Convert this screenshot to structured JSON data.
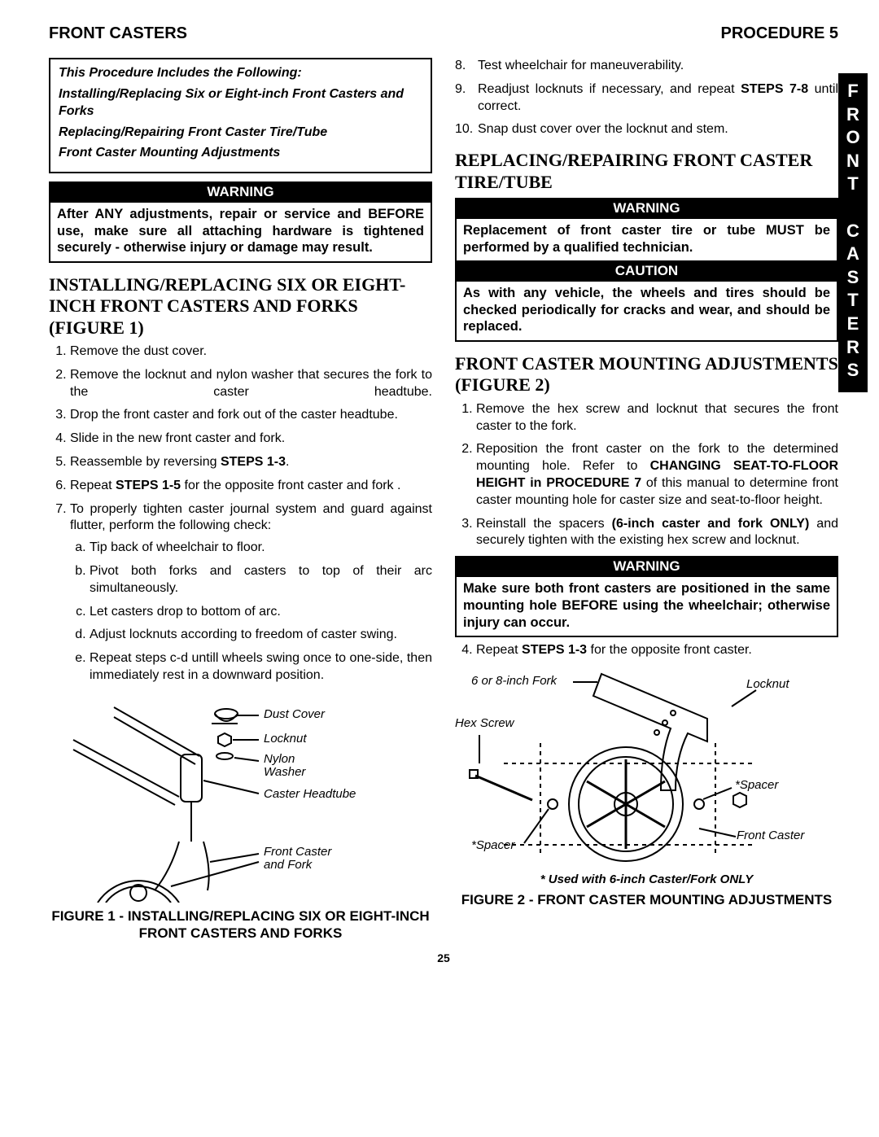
{
  "header": {
    "left": "FRONT CASTERS",
    "right": "PROCEDURE 5"
  },
  "side_tab": "FRONT CASTERS",
  "intro": {
    "lead": "This Procedure Includes the Following:",
    "items": [
      "Installing/Replacing Six or Eight-inch Front Casters and Forks",
      "Replacing/Repairing Front Caster Tire/Tube",
      "Front Caster Mounting Adjustments"
    ]
  },
  "warn1": {
    "head": "WARNING",
    "body": "After ANY adjustments, repair or service and BEFORE use, make sure all attaching hardware is tightened securely - otherwise injury or damage may result."
  },
  "sectionA": {
    "title": "INSTALLING/REPLACING SIX OR EIGHT-INCH FRONT CASTERS AND FORKS (FIGURE 1)",
    "steps": [
      "Remove the dust cover.",
      "Remove the locknut and nylon washer that secures the fork to the caster headtube.",
      "Drop the front caster and fork out of the caster headtube.",
      "Slide in the new front caster and fork.",
      "Reassemble by reversing <b>STEPS 1-3</b>.",
      "Repeat <b>STEPS 1-5</b> for the opposite front caster and fork .",
      "To properly tighten caster journal system and guard against flutter, perform the following check:"
    ],
    "substeps": [
      "Tip back of wheelchair to floor.",
      "Pivot both forks and casters to top of their arc simultaneously.",
      "Let casters drop to bottom of arc.",
      "Adjust locknuts according to freedom of caster swing.",
      "Repeat steps c-d untill wheels swing once to one-side, then immediately rest in a downward position."
    ]
  },
  "right_steps_top": [
    {
      "n": "8.",
      "t": "Test wheelchair for maneuverability."
    },
    {
      "n": "9.",
      "t": "Readjust locknuts if necessary, and repeat <b>STEPS 7-8</b> until correct."
    },
    {
      "n": "10.",
      "t": "Snap dust cover over the locknut and stem."
    }
  ],
  "sectionB": {
    "title": "REPLACING/REPAIRING FRONT CASTER TIRE/TUBE"
  },
  "warn2": {
    "head": "WARNING",
    "body": "Replacement of front caster tire or tube MUST be performed by a qualified technician."
  },
  "caution1": {
    "head": "CAUTION",
    "body": "As with any vehicle, the wheels and tires should be checked periodically for cracks and wear, and should be replaced."
  },
  "sectionC": {
    "title": "FRONT CASTER MOUNTING ADJUSTMENTS (FIGURE 2)",
    "steps": [
      "Remove the hex screw and locknut that secures the front caster to the fork.",
      "Reposition the front caster on the fork to the determined mounting hole. Refer to <b>CHANGING SEAT-TO-FLOOR HEIGHT in PROCEDURE 7</b> of this manual to determine front caster mounting hole for caster size and seat-to-floor height.",
      "Reinstall the spacers <b>(6-inch caster and fork ONLY)</b> and securely tighten with the existing hex screw and locknut."
    ],
    "step4": "Repeat <b>STEPS 1-3</b> for the opposite front caster."
  },
  "warn3": {
    "head": "WARNING",
    "body": "Make sure both front casters are positioned in the same mounting hole BEFORE using the wheelchair; otherwise injury can occur."
  },
  "fig1": {
    "labels": {
      "dust": "Dust Cover",
      "lock": "Locknut",
      "nylon": "Nylon Washer",
      "head": "Caster Headtube",
      "fork": "Front Caster and Fork"
    },
    "caption": "FIGURE 1 - INSTALLING/REPLACING SIX OR EIGHT-INCH FRONT CASTERS AND FORKS"
  },
  "fig2": {
    "labels": {
      "fork": "6 or 8-inch Fork",
      "lock": "Locknut",
      "hex": "Hex Screw",
      "sp1": "*Spacer",
      "sp2": "*Spacer",
      "fc": "Front Caster"
    },
    "note": "* Used with 6-inch Caster/Fork ONLY",
    "caption": "FIGURE 2 - FRONT CASTER MOUNTING ADJUSTMENTS"
  },
  "pagenum": "25"
}
